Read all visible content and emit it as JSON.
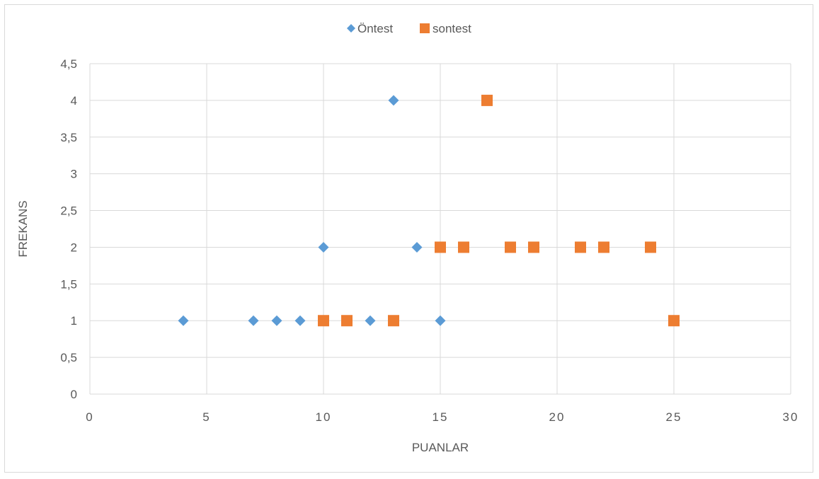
{
  "chart_data": {
    "type": "scatter",
    "title": "",
    "xlabel": "PUANLAR",
    "ylabel": "FREKANS",
    "xlim": [
      0,
      30
    ],
    "ylim": [
      0,
      4.5
    ],
    "x_ticks": [
      "0",
      "5",
      "10",
      "15",
      "20",
      "25",
      "30"
    ],
    "y_ticks": [
      "0",
      "0,5",
      "1",
      "1,5",
      "2",
      "2,5",
      "3",
      "3,5",
      "4",
      "4,5"
    ],
    "grid": true,
    "legend_position": "top",
    "series": [
      {
        "name": "Öntest",
        "marker": "diamond",
        "color": "#5b9bd5",
        "points": [
          {
            "x": 4,
            "y": 1
          },
          {
            "x": 7,
            "y": 1
          },
          {
            "x": 8,
            "y": 1
          },
          {
            "x": 9,
            "y": 1
          },
          {
            "x": 10,
            "y": 2
          },
          {
            "x": 12,
            "y": 1
          },
          {
            "x": 13,
            "y": 4
          },
          {
            "x": 14,
            "y": 2
          },
          {
            "x": 15,
            "y": 1
          }
        ]
      },
      {
        "name": "sontest",
        "marker": "square",
        "color": "#ed7d31",
        "points": [
          {
            "x": 10,
            "y": 1
          },
          {
            "x": 11,
            "y": 1
          },
          {
            "x": 13,
            "y": 1
          },
          {
            "x": 15,
            "y": 2
          },
          {
            "x": 16,
            "y": 2
          },
          {
            "x": 17,
            "y": 4
          },
          {
            "x": 18,
            "y": 2
          },
          {
            "x": 19,
            "y": 2
          },
          {
            "x": 21,
            "y": 2
          },
          {
            "x": 22,
            "y": 2
          },
          {
            "x": 24,
            "y": 2
          },
          {
            "x": 25,
            "y": 1
          }
        ]
      }
    ]
  }
}
